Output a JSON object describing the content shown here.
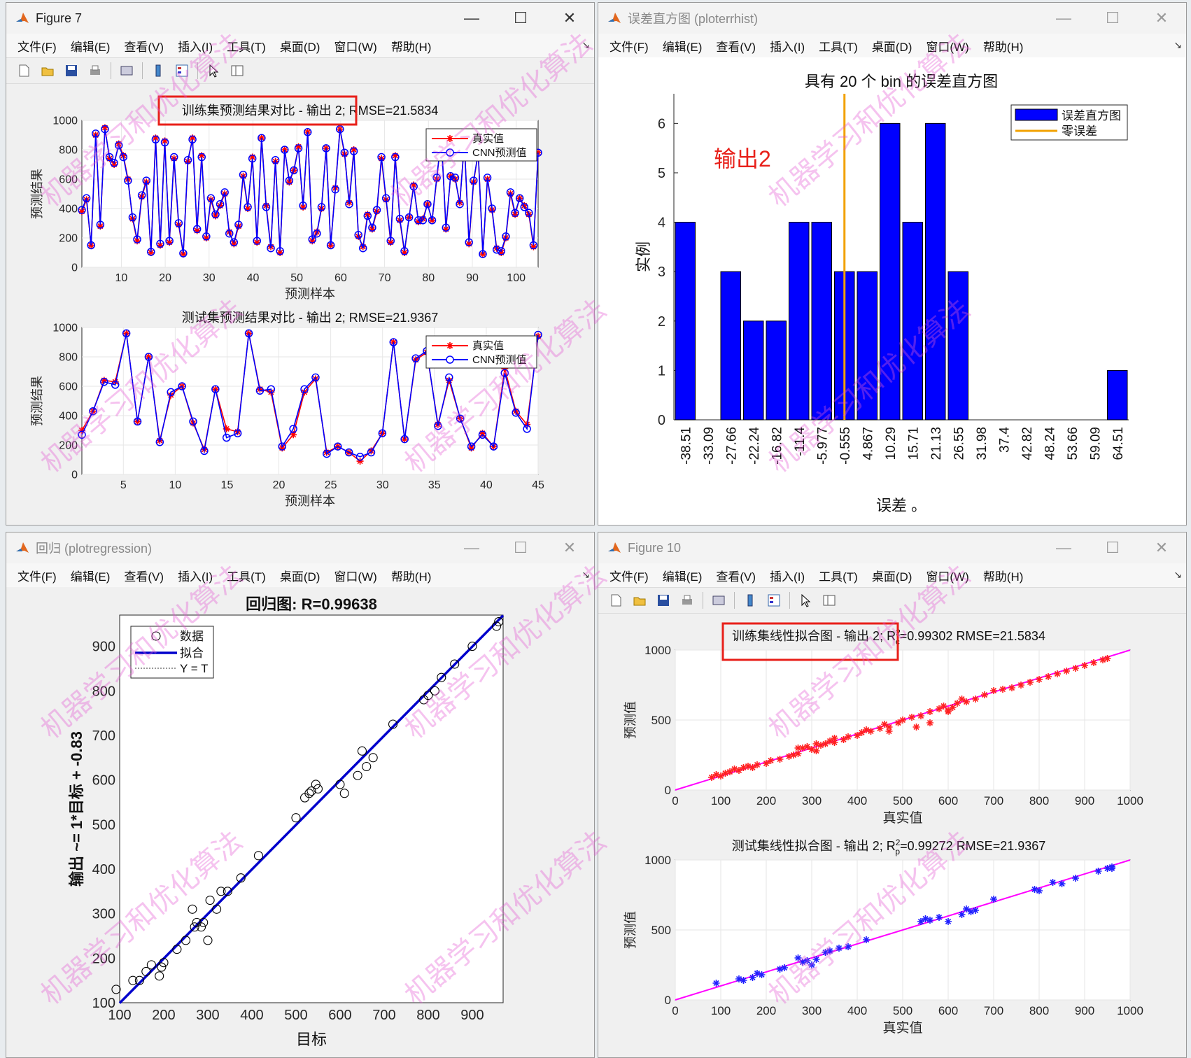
{
  "menus": [
    "文件(F)",
    "编辑(E)",
    "查看(V)",
    "插入(I)",
    "工具(T)",
    "桌面(D)",
    "窗口(W)",
    "帮助(H)"
  ],
  "windows": {
    "fig7": {
      "title": "Figure 7"
    },
    "hist": {
      "title": "误差直方图 (ploterrhist)"
    },
    "regr": {
      "title": "回归 (plotregression)"
    },
    "fig10": {
      "title": "Figure 10"
    }
  },
  "colors": {
    "true_series": "#ff0000",
    "pred_series": "#0000ff",
    "hist_bar": "#0000ff",
    "zero_line": "#f2a100",
    "fit_line": "#0000cc",
    "linefit": "#ff00ff",
    "highlight": "#e8201a"
  },
  "watermark": "机器学习和优化算法",
  "chart_data": [
    {
      "id": "train_compare",
      "type": "line",
      "title": "训练集预测结果对比 - 输出 2; RMSE=21.5834",
      "xlabel": "预测样本",
      "ylabel": "预测结果",
      "xlim": [
        1,
        105
      ],
      "ylim": [
        0,
        1000
      ],
      "xticks": [
        10,
        20,
        30,
        40,
        50,
        60,
        70,
        80,
        90,
        100
      ],
      "yticks": [
        0,
        200,
        400,
        600,
        800,
        1000
      ],
      "legend": [
        "真实值",
        "CNN预测值"
      ],
      "series": [
        {
          "name": "真实值",
          "values": [
            380,
            460,
            150,
            900,
            280,
            950,
            740,
            700,
            840,
            760,
            600,
            330,
            180,
            480,
            580,
            100,
            880,
            150,
            860,
            170,
            740,
            290,
            90,
            720,
            880,
            250,
            760,
            200,
            460,
            350,
            420,
            500,
            240,
            160,
            280,
            620,
            400,
            750,
            170,
            880,
            420,
            140,
            720,
            100,
            800,
            580,
            660,
            820,
            410,
            920,
            180,
            240,
            400,
            810,
            150,
            540,
            940,
            770,
            440,
            800,
            210,
            140,
            360,
            260,
            380,
            740,
            460,
            170,
            760,
            320,
            100,
            340,
            560,
            310,
            330,
            430,
            320,
            600,
            890,
            260,
            620,
            600,
            440,
            850,
            160,
            580,
            780,
            90,
            600,
            390,
            130,
            100,
            200,
            500,
            360,
            470,
            420,
            360,
            140,
            780
          ]
        },
        {
          "name": "CNN预测值",
          "values": [
            390,
            470,
            150,
            910,
            290,
            940,
            750,
            710,
            830,
            750,
            590,
            340,
            190,
            490,
            590,
            105,
            870,
            160,
            850,
            180,
            750,
            300,
            95,
            730,
            870,
            260,
            750,
            210,
            470,
            360,
            430,
            510,
            230,
            170,
            290,
            630,
            410,
            740,
            180,
            880,
            410,
            130,
            730,
            110,
            800,
            590,
            660,
            810,
            420,
            920,
            190,
            230,
            410,
            810,
            150,
            530,
            940,
            780,
            430,
            790,
            220,
            130,
            350,
            270,
            390,
            750,
            470,
            180,
            750,
            330,
            110,
            340,
            550,
            320,
            320,
            430,
            320,
            610,
            880,
            270,
            620,
            610,
            430,
            850,
            170,
            590,
            780,
            90,
            610,
            400,
            120,
            110,
            210,
            510,
            370,
            470,
            410,
            370,
            150,
            780
          ]
        }
      ]
    },
    {
      "id": "test_compare",
      "type": "line",
      "title": "测试集预测结果对比 - 输出 2; RMSE=21.9367",
      "xlabel": "预测样本",
      "ylabel": "预测结果",
      "xlim": [
        1,
        45
      ],
      "ylim": [
        0,
        1000
      ],
      "xticks": [
        5,
        10,
        15,
        20,
        25,
        30,
        35,
        40,
        45
      ],
      "yticks": [
        0,
        200,
        400,
        600,
        800,
        1000
      ],
      "legend": [
        "真实值",
        "CNN预测值"
      ],
      "series": [
        {
          "name": "真实值",
          "values": [
            300,
            430,
            640,
            630,
            960,
            360,
            800,
            230,
            540,
            600,
            350,
            170,
            580,
            310,
            290,
            960,
            580,
            560,
            180,
            270,
            560,
            650,
            150,
            190,
            150,
            90,
            160,
            280,
            900,
            240,
            780,
            830,
            340,
            640,
            380,
            180,
            280,
            190,
            720,
            430,
            340,
            940
          ]
        },
        {
          "name": "CNN预测值",
          "values": [
            270,
            430,
            630,
            610,
            960,
            360,
            800,
            220,
            560,
            600,
            360,
            160,
            580,
            250,
            280,
            960,
            570,
            580,
            190,
            310,
            580,
            660,
            140,
            190,
            150,
            120,
            150,
            280,
            900,
            240,
            790,
            840,
            330,
            660,
            380,
            190,
            270,
            190,
            690,
            420,
            310,
            950
          ]
        }
      ]
    },
    {
      "id": "error_hist",
      "type": "bar",
      "title": "具有 20 个 bin 的误差直方图",
      "xlabel": "误差 。",
      "ylabel": "实例",
      "ylim": [
        0,
        6.6
      ],
      "yticks": [
        0,
        1,
        2,
        3,
        4,
        5,
        6
      ],
      "categories": [
        "-38.51",
        "-33.09",
        "-27.66",
        "-22.24",
        "-16.82",
        "-11.4",
        "-5.977",
        "-0.555",
        "4.867",
        "10.29",
        "15.71",
        "21.13",
        "26.55",
        "31.98",
        "37.4",
        "42.82",
        "48.24",
        "53.66",
        "59.09",
        "64.51"
      ],
      "values": [
        4,
        0,
        3,
        2,
        2,
        4,
        4,
        3,
        3,
        6,
        4,
        6,
        3,
        0,
        0,
        0,
        0,
        0,
        0,
        1
      ],
      "zero_error_at": "-0.555",
      "legend": [
        "误差直方图",
        "零误差"
      ],
      "annotation": "输出2"
    },
    {
      "id": "regression",
      "type": "scatter",
      "title": "回归图: R=0.99638",
      "xlabel": "目标",
      "ylabel": "输出 ~= 1*目标 + -0.83",
      "xlim": [
        100,
        970
      ],
      "ylim": [
        100,
        970
      ],
      "xticks": [
        100,
        200,
        300,
        400,
        500,
        600,
        700,
        800,
        900
      ],
      "yticks": [
        100,
        200,
        300,
        400,
        500,
        600,
        700,
        800,
        900
      ],
      "legend": [
        "数据",
        "拟合",
        "Y = T"
      ],
      "fit": {
        "slope": 1.0,
        "intercept": -0.83
      },
      "points": [
        [
          92,
          130
        ],
        [
          130,
          150
        ],
        [
          145,
          150
        ],
        [
          160,
          170
        ],
        [
          172,
          185
        ],
        [
          190,
          160
        ],
        [
          195,
          180
        ],
        [
          200,
          190
        ],
        [
          230,
          220
        ],
        [
          250,
          240
        ],
        [
          265,
          310
        ],
        [
          270,
          270
        ],
        [
          275,
          280
        ],
        [
          285,
          270
        ],
        [
          290,
          280
        ],
        [
          300,
          240
        ],
        [
          305,
          330
        ],
        [
          320,
          310
        ],
        [
          330,
          350
        ],
        [
          345,
          350
        ],
        [
          375,
          380
        ],
        [
          415,
          430
        ],
        [
          500,
          515
        ],
        [
          520,
          560
        ],
        [
          530,
          570
        ],
        [
          535,
          575
        ],
        [
          545,
          590
        ],
        [
          550,
          580
        ],
        [
          600,
          590
        ],
        [
          610,
          570
        ],
        [
          640,
          610
        ],
        [
          650,
          665
        ],
        [
          660,
          630
        ],
        [
          675,
          650
        ],
        [
          720,
          725
        ],
        [
          790,
          780
        ],
        [
          800,
          790
        ],
        [
          815,
          800
        ],
        [
          830,
          830
        ],
        [
          860,
          860
        ],
        [
          900,
          900
        ],
        [
          955,
          945
        ],
        [
          960,
          955
        ]
      ]
    },
    {
      "id": "train_linefit",
      "type": "scatter",
      "title": "训练集线性拟合图 - 输出 2; R_c^2=0.99302  RMSE=21.5834",
      "xlabel": "真实值",
      "ylabel": "预测值",
      "xlim": [
        0,
        1000
      ],
      "ylim": [
        0,
        1000
      ],
      "xticks": [
        0,
        100,
        200,
        300,
        400,
        500,
        600,
        700,
        800,
        900,
        1000
      ],
      "yticks": [
        0,
        500,
        1000
      ],
      "points": [
        [
          80,
          90
        ],
        [
          90,
          110
        ],
        [
          100,
          100
        ],
        [
          110,
          120
        ],
        [
          120,
          130
        ],
        [
          130,
          150
        ],
        [
          140,
          140
        ],
        [
          150,
          160
        ],
        [
          160,
          170
        ],
        [
          170,
          160
        ],
        [
          180,
          180
        ],
        [
          200,
          190
        ],
        [
          210,
          210
        ],
        [
          230,
          220
        ],
        [
          250,
          240
        ],
        [
          260,
          250
        ],
        [
          270,
          260
        ],
        [
          280,
          300
        ],
        [
          290,
          310
        ],
        [
          300,
          290
        ],
        [
          310,
          330
        ],
        [
          320,
          320
        ],
        [
          330,
          330
        ],
        [
          340,
          350
        ],
        [
          350,
          340
        ],
        [
          370,
          360
        ],
        [
          380,
          380
        ],
        [
          400,
          390
        ],
        [
          410,
          410
        ],
        [
          420,
          430
        ],
        [
          430,
          420
        ],
        [
          450,
          440
        ],
        [
          460,
          470
        ],
        [
          470,
          450
        ],
        [
          490,
          480
        ],
        [
          500,
          500
        ],
        [
          520,
          520
        ],
        [
          540,
          530
        ],
        [
          560,
          560
        ],
        [
          580,
          580
        ],
        [
          590,
          600
        ],
        [
          600,
          570
        ],
        [
          610,
          590
        ],
        [
          620,
          620
        ],
        [
          640,
          630
        ],
        [
          660,
          650
        ],
        [
          680,
          680
        ],
        [
          700,
          710
        ],
        [
          720,
          720
        ],
        [
          740,
          730
        ],
        [
          760,
          750
        ],
        [
          780,
          770
        ],
        [
          800,
          790
        ],
        [
          820,
          810
        ],
        [
          840,
          830
        ],
        [
          860,
          850
        ],
        [
          880,
          870
        ],
        [
          900,
          890
        ],
        [
          920,
          910
        ],
        [
          940,
          930
        ],
        [
          950,
          940
        ],
        [
          470,
          420
        ],
        [
          560,
          480
        ],
        [
          530,
          450
        ],
        [
          310,
          280
        ],
        [
          270,
          300
        ],
        [
          350,
          370
        ],
        [
          630,
          650
        ],
        [
          600,
          560
        ]
      ]
    },
    {
      "id": "test_linefit",
      "type": "scatter",
      "title": "测试集线性拟合图 - 输出 2; R_p^2=0.99272  RMSE=21.9367",
      "xlabel": "真实值",
      "ylabel": "预测值",
      "xlim": [
        0,
        1000
      ],
      "ylim": [
        0,
        1000
      ],
      "xticks": [
        0,
        100,
        200,
        300,
        400,
        500,
        600,
        700,
        800,
        900,
        1000
      ],
      "yticks": [
        0,
        500,
        1000
      ],
      "points": [
        [
          90,
          120
        ],
        [
          140,
          150
        ],
        [
          150,
          140
        ],
        [
          170,
          160
        ],
        [
          180,
          190
        ],
        [
          190,
          180
        ],
        [
          230,
          220
        ],
        [
          240,
          230
        ],
        [
          270,
          300
        ],
        [
          280,
          270
        ],
        [
          290,
          280
        ],
        [
          300,
          250
        ],
        [
          310,
          290
        ],
        [
          330,
          340
        ],
        [
          340,
          350
        ],
        [
          360,
          370
        ],
        [
          380,
          380
        ],
        [
          420,
          430
        ],
        [
          540,
          560
        ],
        [
          550,
          580
        ],
        [
          560,
          570
        ],
        [
          580,
          590
        ],
        [
          600,
          560
        ],
        [
          630,
          610
        ],
        [
          640,
          650
        ],
        [
          650,
          630
        ],
        [
          660,
          640
        ],
        [
          700,
          720
        ],
        [
          790,
          790
        ],
        [
          800,
          780
        ],
        [
          830,
          840
        ],
        [
          850,
          830
        ],
        [
          880,
          870
        ],
        [
          930,
          920
        ],
        [
          950,
          940
        ],
        [
          960,
          950
        ],
        [
          960,
          940
        ]
      ]
    }
  ]
}
